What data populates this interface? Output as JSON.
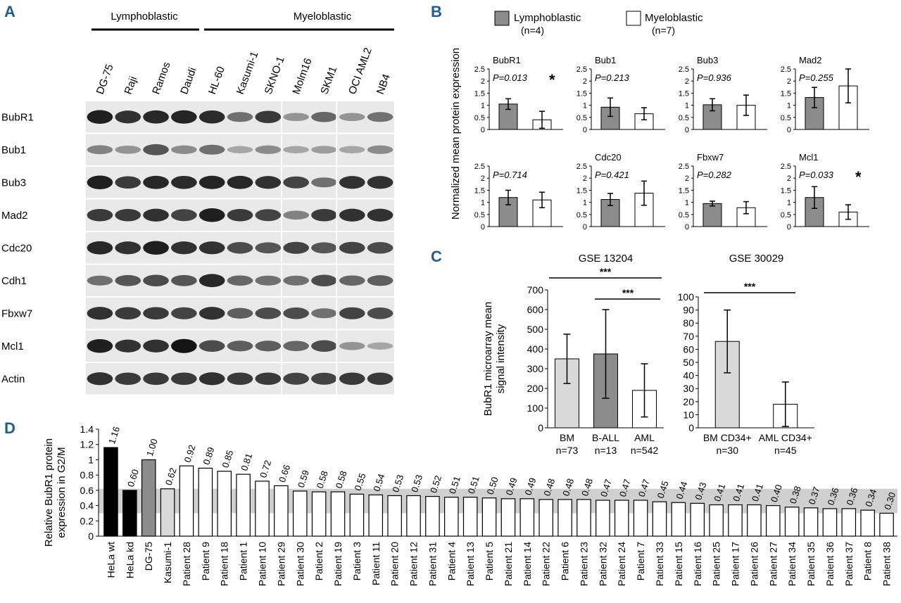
{
  "panels": {
    "a": "A",
    "b": "B",
    "c": "C",
    "d": "D"
  },
  "panelA": {
    "group_lympho": "Lymphoblastic",
    "group_myelo": "Myeloblastic",
    "cell_lines": [
      "DG-75",
      "Raji",
      "Ramos",
      "Daudi",
      "HL-60",
      "Kasumi-1",
      "SKNO-1",
      "Molm16",
      "SKM1",
      "OCI AML2",
      "NB4"
    ],
    "proteins": [
      "BubR1",
      "Bub1",
      "Bub3",
      "Mad2",
      "Cdc20",
      "Cdh1",
      "Fbxw7",
      "Mcl1",
      "Actin"
    ],
    "band_intensity": [
      [
        0.95,
        0.85,
        0.9,
        0.92,
        0.88,
        0.5,
        0.8,
        0.3,
        0.55,
        0.3,
        0.5
      ],
      [
        0.4,
        0.3,
        0.65,
        0.35,
        0.5,
        0.2,
        0.35,
        0.2,
        0.25,
        0.2,
        0.35
      ],
      [
        0.95,
        0.8,
        0.9,
        0.88,
        0.92,
        0.9,
        0.85,
        0.75,
        0.5,
        0.85,
        0.85
      ],
      [
        0.8,
        0.8,
        0.85,
        0.75,
        0.95,
        0.8,
        0.75,
        0.4,
        0.8,
        0.85,
        0.85
      ],
      [
        0.9,
        0.85,
        0.95,
        0.85,
        0.85,
        0.7,
        0.65,
        0.75,
        0.65,
        0.75,
        0.7
      ],
      [
        0.5,
        0.65,
        0.7,
        0.65,
        0.9,
        0.55,
        0.5,
        0.5,
        0.7,
        0.55,
        0.6
      ],
      [
        0.85,
        0.8,
        0.8,
        0.75,
        0.85,
        0.6,
        0.7,
        0.7,
        0.5,
        0.75,
        0.7
      ],
      [
        0.95,
        0.85,
        0.85,
        1.0,
        0.7,
        0.6,
        0.6,
        0.55,
        0.7,
        0.3,
        0.2
      ],
      [
        0.85,
        0.8,
        0.8,
        0.8,
        0.85,
        0.8,
        0.8,
        0.75,
        0.75,
        0.8,
        0.8
      ]
    ]
  },
  "panelB": {
    "legend": {
      "lympho": "Lymphoblastic",
      "lympho_n": "(n=4)",
      "myelo": "Myeloblastic",
      "myelo_n": "(n=7)"
    },
    "ylabel": "Normalized mean protein expression",
    "star": "*",
    "yticks": [
      "0",
      "0.5",
      "1",
      "1.5",
      "2",
      "2.5"
    ],
    "plots": [
      {
        "name": "BubR1",
        "p": "P=0.013",
        "lympho": 1.05,
        "lympho_err": 0.22,
        "myelo": 0.4,
        "myelo_err": 0.35,
        "sig": true
      },
      {
        "name": "Bub1",
        "p": "P=0.213",
        "lympho": 0.92,
        "lympho_err": 0.38,
        "myelo": 0.65,
        "myelo_err": 0.25,
        "sig": false
      },
      {
        "name": "Bub3",
        "p": "P=0.936",
        "lympho": 1.02,
        "lympho_err": 0.25,
        "myelo": 1.0,
        "myelo_err": 0.42,
        "sig": false
      },
      {
        "name": "Mad2",
        "p": "P=0.255",
        "lympho": 1.32,
        "lympho_err": 0.42,
        "myelo": 1.8,
        "myelo_err": 0.7,
        "sig": false
      },
      {
        "name": "",
        "p": "P=0.714",
        "lympho": 1.2,
        "lympho_err": 0.3,
        "myelo": 1.1,
        "myelo_err": 0.32,
        "sig": false
      },
      {
        "name": "Cdc20",
        "p": "P=0.421",
        "lympho": 1.12,
        "lympho_err": 0.25,
        "myelo": 1.38,
        "myelo_err": 0.5,
        "sig": false
      },
      {
        "name": "Fbxw7",
        "p": "P=0.282",
        "lympho": 0.95,
        "lympho_err": 0.1,
        "myelo": 0.78,
        "myelo_err": 0.25,
        "sig": false
      },
      {
        "name": "Mcl1",
        "p": "P=0.033",
        "lympho": 1.2,
        "lympho_err": 0.45,
        "myelo": 0.6,
        "myelo_err": 0.3,
        "sig": true
      }
    ]
  },
  "panelC": {
    "ylabel1": "BubR1 microarray mean",
    "ylabel2": "signal intensity",
    "stars": "***",
    "left": {
      "title": "GSE 13204",
      "yticks": [
        "0",
        "100",
        "200",
        "300",
        "400",
        "500",
        "600",
        "700"
      ],
      "ymax": 700,
      "bars": [
        {
          "label": "BM",
          "n": "n=73",
          "value": 350,
          "err": 125,
          "color": "#d9d9d9"
        },
        {
          "label": "B-ALL",
          "n": "n=13",
          "value": 375,
          "err": 225,
          "color": "#8c8c8c"
        },
        {
          "label": "AML",
          "n": "n=542",
          "value": 190,
          "err": 135,
          "color": "#ffffff"
        }
      ]
    },
    "right": {
      "title": "GSE 30029",
      "yticks": [
        "0",
        "10",
        "20",
        "30",
        "40",
        "50",
        "60",
        "70",
        "80",
        "90",
        "100"
      ],
      "ymax": 100,
      "bars": [
        {
          "label": "BM CD34+",
          "n": "n=30",
          "value": 66,
          "err": 24,
          "color": "#d9d9d9"
        },
        {
          "label": "AML CD34+",
          "n": "n=45",
          "value": 18,
          "err": 17,
          "color": "#ffffff"
        }
      ]
    }
  },
  "panelD": {
    "ylabel1": "Relative BubR1 protein",
    "ylabel2": "expression in G2/M",
    "yticks": [
      "0",
      "0.2",
      "0.4",
      "0.6",
      "0.8",
      "1",
      "1.2",
      "1.4"
    ],
    "band_range": [
      0.3,
      0.62
    ],
    "bars": [
      {
        "label": "HeLa wt",
        "value": 1.16,
        "text": "1.16",
        "color": "#000000"
      },
      {
        "label": "HeLa kd",
        "value": 0.6,
        "text": "0.60",
        "color": "#000000"
      },
      {
        "label": "DG-75",
        "value": 1.0,
        "text": "1.00",
        "color": "#8c8c8c"
      },
      {
        "label": "Kasumi-1",
        "value": 0.62,
        "text": "0.62",
        "color": "#d9d9d9"
      },
      {
        "label": "Patient 28",
        "value": 0.92,
        "text": "0.92",
        "color": "#ffffff"
      },
      {
        "label": "Patient 9",
        "value": 0.89,
        "text": "0.89",
        "color": "#ffffff"
      },
      {
        "label": "Patient 18",
        "value": 0.85,
        "text": "0.85",
        "color": "#ffffff"
      },
      {
        "label": "Patient 1",
        "value": 0.81,
        "text": "0.81",
        "color": "#ffffff"
      },
      {
        "label": "Patient 10",
        "value": 0.72,
        "text": "0.72",
        "color": "#ffffff"
      },
      {
        "label": "Patient 29",
        "value": 0.66,
        "text": "0.66",
        "color": "#ffffff"
      },
      {
        "label": "Patient 30",
        "value": 0.59,
        "text": "0.59",
        "color": "#ffffff"
      },
      {
        "label": "Patient 2",
        "value": 0.58,
        "text": "0.58",
        "color": "#ffffff"
      },
      {
        "label": "Patient 19",
        "value": 0.58,
        "text": "0.58",
        "color": "#ffffff"
      },
      {
        "label": "Patient 3",
        "value": 0.55,
        "text": "0.55",
        "color": "#ffffff"
      },
      {
        "label": "Patient 11",
        "value": 0.54,
        "text": "0.54",
        "color": "#ffffff"
      },
      {
        "label": "Patient 20",
        "value": 0.53,
        "text": "0.53",
        "color": "#ffffff"
      },
      {
        "label": "Patient 12",
        "value": 0.53,
        "text": "0.53",
        "color": "#ffffff"
      },
      {
        "label": "Patient 31",
        "value": 0.52,
        "text": "0.52",
        "color": "#ffffff"
      },
      {
        "label": "Patient 4",
        "value": 0.51,
        "text": "0.51",
        "color": "#ffffff"
      },
      {
        "label": "Patient 13",
        "value": 0.51,
        "text": "0.51",
        "color": "#ffffff"
      },
      {
        "label": "Patient 5",
        "value": 0.5,
        "text": "0.50",
        "color": "#ffffff"
      },
      {
        "label": "Patient 21",
        "value": 0.49,
        "text": "0.49",
        "color": "#ffffff"
      },
      {
        "label": "Patient 14",
        "value": 0.49,
        "text": "0.49",
        "color": "#ffffff"
      },
      {
        "label": "Patient 22",
        "value": 0.48,
        "text": "0.48",
        "color": "#ffffff"
      },
      {
        "label": "Patient 6",
        "value": 0.48,
        "text": "0.48",
        "color": "#ffffff"
      },
      {
        "label": "Patient 23",
        "value": 0.48,
        "text": "0.48",
        "color": "#ffffff"
      },
      {
        "label": "Patient 32",
        "value": 0.47,
        "text": "0.47",
        "color": "#ffffff"
      },
      {
        "label": "Patient 24",
        "value": 0.47,
        "text": "0.47",
        "color": "#ffffff"
      },
      {
        "label": "Patient 7",
        "value": 0.47,
        "text": "0.47",
        "color": "#ffffff"
      },
      {
        "label": "Patient 33",
        "value": 0.45,
        "text": "0.45",
        "color": "#ffffff"
      },
      {
        "label": "Patient 15",
        "value": 0.44,
        "text": "0.44",
        "color": "#ffffff"
      },
      {
        "label": "Patient 16",
        "value": 0.43,
        "text": "0.43",
        "color": "#ffffff"
      },
      {
        "label": "Patient 25",
        "value": 0.41,
        "text": "0.41",
        "color": "#ffffff"
      },
      {
        "label": "Patient 17",
        "value": 0.41,
        "text": "0.41",
        "color": "#ffffff"
      },
      {
        "label": "Patient 26",
        "value": 0.41,
        "text": "0.41",
        "color": "#ffffff"
      },
      {
        "label": "Patient 27",
        "value": 0.4,
        "text": "0.40",
        "color": "#ffffff"
      },
      {
        "label": "Patient 34",
        "value": 0.38,
        "text": "0.38",
        "color": "#ffffff"
      },
      {
        "label": "Patient 35",
        "value": 0.37,
        "text": "0.37",
        "color": "#ffffff"
      },
      {
        "label": "Patient 36",
        "value": 0.36,
        "text": "0.36",
        "color": "#ffffff"
      },
      {
        "label": "Patient 37",
        "value": 0.36,
        "text": "0.36",
        "color": "#ffffff"
      },
      {
        "label": "Patient 8",
        "value": 0.34,
        "text": "0.34",
        "color": "#ffffff"
      },
      {
        "label": "Patient 38",
        "value": 0.3,
        "text": "0.30",
        "color": "#ffffff"
      }
    ]
  },
  "chart_data": [
    {
      "type": "bar",
      "title": "BubR1",
      "series": [
        {
          "name": "Lymphoblastic (n=4)",
          "values": [
            1.05
          ]
        },
        {
          "name": "Myeloblastic (n=7)",
          "values": [
            0.4
          ]
        }
      ],
      "annotation": "P=0.013 *",
      "ylim": [
        0,
        2.5
      ],
      "ylabel": "Normalized mean protein expression"
    },
    {
      "type": "bar",
      "title": "Bub1",
      "series": [
        {
          "name": "Lymphoblastic (n=4)",
          "values": [
            0.92
          ]
        },
        {
          "name": "Myeloblastic (n=7)",
          "values": [
            0.65
          ]
        }
      ],
      "annotation": "P=0.213",
      "ylim": [
        0,
        2.5
      ]
    },
    {
      "type": "bar",
      "title": "Bub3",
      "series": [
        {
          "name": "Lymphoblastic (n=4)",
          "values": [
            1.02
          ]
        },
        {
          "name": "Myeloblastic (n=7)",
          "values": [
            1.0
          ]
        }
      ],
      "annotation": "P=0.936",
      "ylim": [
        0,
        2.5
      ]
    },
    {
      "type": "bar",
      "title": "Mad2",
      "series": [
        {
          "name": "Lymphoblastic (n=4)",
          "values": [
            1.32
          ]
        },
        {
          "name": "Myeloblastic (n=7)",
          "values": [
            1.8
          ]
        }
      ],
      "annotation": "P=0.255",
      "ylim": [
        0,
        2.5
      ]
    },
    {
      "type": "bar",
      "title": "",
      "series": [
        {
          "name": "Lymphoblastic (n=4)",
          "values": [
            1.2
          ]
        },
        {
          "name": "Myeloblastic (n=7)",
          "values": [
            1.1
          ]
        }
      ],
      "annotation": "P=0.714",
      "ylim": [
        0,
        2.5
      ]
    },
    {
      "type": "bar",
      "title": "Cdc20",
      "series": [
        {
          "name": "Lymphoblastic (n=4)",
          "values": [
            1.12
          ]
        },
        {
          "name": "Myeloblastic (n=7)",
          "values": [
            1.38
          ]
        }
      ],
      "annotation": "P=0.421",
      "ylim": [
        0,
        2.5
      ]
    },
    {
      "type": "bar",
      "title": "Fbxw7",
      "series": [
        {
          "name": "Lymphoblastic (n=4)",
          "values": [
            0.95
          ]
        },
        {
          "name": "Myeloblastic (n=7)",
          "values": [
            0.78
          ]
        }
      ],
      "annotation": "P=0.282",
      "ylim": [
        0,
        2.5
      ]
    },
    {
      "type": "bar",
      "title": "Mcl1",
      "series": [
        {
          "name": "Lymphoblastic (n=4)",
          "values": [
            1.2
          ]
        },
        {
          "name": "Myeloblastic (n=7)",
          "values": [
            0.6
          ]
        }
      ],
      "annotation": "P=0.033 *",
      "ylim": [
        0,
        2.5
      ]
    },
    {
      "type": "bar",
      "title": "GSE 13204",
      "categories": [
        "BM n=73",
        "B-ALL n=13",
        "AML n=542"
      ],
      "values": [
        350,
        375,
        190
      ],
      "ylim": [
        0,
        700
      ],
      "ylabel": "BubR1 microarray mean signal intensity"
    },
    {
      "type": "bar",
      "title": "GSE 30029",
      "categories": [
        "BM CD34+ n=30",
        "AML CD34+ n=45"
      ],
      "values": [
        66,
        18
      ],
      "ylim": [
        0,
        100
      ]
    },
    {
      "type": "bar",
      "title": "",
      "ylabel": "Relative BubR1 protein expression in G2/M",
      "ylim": [
        0,
        1.4
      ],
      "categories": [
        "HeLa wt",
        "HeLa kd",
        "DG-75",
        "Kasumi-1",
        "Patient 28",
        "Patient 9",
        "Patient 18",
        "Patient 1",
        "Patient 10",
        "Patient 29",
        "Patient 30",
        "Patient 2",
        "Patient 19",
        "Patient 3",
        "Patient 11",
        "Patient 20",
        "Patient 12",
        "Patient 31",
        "Patient 4",
        "Patient 13",
        "Patient 5",
        "Patient 21",
        "Patient 14",
        "Patient 22",
        "Patient 6",
        "Patient 23",
        "Patient 32",
        "Patient 24",
        "Patient 7",
        "Patient 33",
        "Patient 15",
        "Patient 16",
        "Patient 25",
        "Patient 17",
        "Patient 26",
        "Patient 27",
        "Patient 34",
        "Patient 35",
        "Patient 36",
        "Patient 37",
        "Patient 8",
        "Patient 38"
      ],
      "values": [
        1.16,
        0.6,
        1.0,
        0.62,
        0.92,
        0.89,
        0.85,
        0.81,
        0.72,
        0.66,
        0.59,
        0.58,
        0.58,
        0.55,
        0.54,
        0.53,
        0.53,
        0.52,
        0.51,
        0.51,
        0.5,
        0.49,
        0.49,
        0.48,
        0.48,
        0.48,
        0.47,
        0.47,
        0.47,
        0.45,
        0.44,
        0.43,
        0.41,
        0.41,
        0.41,
        0.4,
        0.38,
        0.37,
        0.36,
        0.36,
        0.34,
        0.3
      ]
    }
  ]
}
